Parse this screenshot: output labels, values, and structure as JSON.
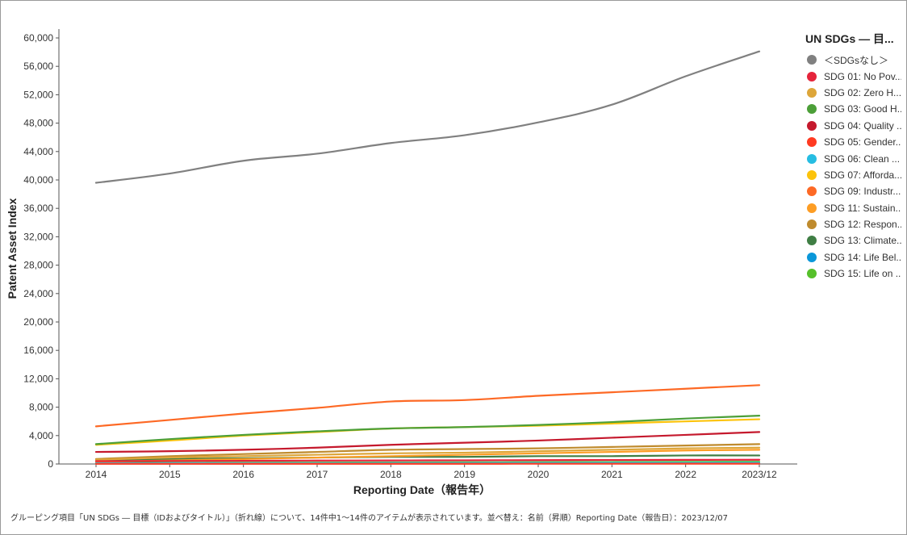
{
  "chart_data": {
    "type": "line",
    "xlabel": "Reporting Date（報告年）",
    "ylabel": "Patent Asset Index",
    "x": [
      "2014",
      "2015",
      "2016",
      "2017",
      "2018",
      "2019",
      "2020",
      "2021",
      "2022",
      "2023/12"
    ],
    "ylim": [
      0,
      60000
    ],
    "yticks": [
      0,
      4000,
      8000,
      12000,
      16000,
      20000,
      24000,
      28000,
      32000,
      36000,
      40000,
      44000,
      48000,
      52000,
      56000,
      60000
    ],
    "ytick_labels": [
      "0",
      "4,000",
      "8,000",
      "12,000",
      "16,000",
      "20,000",
      "24,000",
      "28,000",
      "32,000",
      "36,000",
      "40,000",
      "44,000",
      "48,000",
      "52,000",
      "56,000",
      "60,000"
    ],
    "grid": false,
    "legend_position": "right",
    "legend_title": "UN SDGs ― 目...",
    "series": [
      {
        "name": "＜SDGsなし＞",
        "color": "#808080",
        "values": [
          39600,
          40900,
          42700,
          43700,
          45200,
          46300,
          48100,
          50600,
          54600,
          58100
        ]
      },
      {
        "name": "SDG 01: No Pov...",
        "color": "#e5243b",
        "values": [
          400,
          420,
          450,
          480,
          500,
          520,
          540,
          560,
          580,
          600
        ]
      },
      {
        "name": "SDG 02: Zero H...",
        "color": "#dda63a",
        "values": [
          600,
          900,
          1100,
          1300,
          1500,
          1600,
          1800,
          2000,
          2200,
          2300
        ]
      },
      {
        "name": "SDG 03: Good H...",
        "color": "#4c9f38",
        "values": [
          2800,
          3500,
          4100,
          4600,
          5000,
          5200,
          5500,
          5900,
          6400,
          6800
        ]
      },
      {
        "name": "SDG 04: Quality ...",
        "color": "#c5192d",
        "values": [
          1700,
          1800,
          2000,
          2300,
          2700,
          3000,
          3300,
          3700,
          4100,
          4500
        ]
      },
      {
        "name": "SDG 05: Gender...",
        "color": "#ff3a21",
        "values": [
          20,
          20,
          25,
          25,
          30,
          30,
          35,
          35,
          40,
          40
        ]
      },
      {
        "name": "SDG 06: Clean ...",
        "color": "#26bde2",
        "values": [
          100,
          110,
          120,
          130,
          140,
          150,
          160,
          170,
          180,
          190
        ]
      },
      {
        "name": "SDG 07: Afforda...",
        "color": "#fcc30b",
        "values": [
          2700,
          3300,
          4000,
          4500,
          5000,
          5200,
          5400,
          5700,
          6000,
          6300
        ]
      },
      {
        "name": "SDG 09: Industr...",
        "color": "#fd6925",
        "values": [
          5300,
          6200,
          7100,
          7900,
          8800,
          9000,
          9600,
          10100,
          10600,
          11100
        ]
      },
      {
        "name": "SDG 11: Sustain...",
        "color": "#fd9d24",
        "values": [
          300,
          500,
          700,
          900,
          1100,
          1300,
          1500,
          1700,
          1900,
          2000
        ]
      },
      {
        "name": "SDG 12: Respon...",
        "color": "#bf8b2e",
        "values": [
          700,
          1100,
          1400,
          1700,
          2000,
          2100,
          2200,
          2400,
          2600,
          2800
        ]
      },
      {
        "name": "SDG 13: Climate...",
        "color": "#3f7e44",
        "values": [
          600,
          700,
          800,
          900,
          1000,
          1000,
          1100,
          1100,
          1200,
          1200
        ]
      },
      {
        "name": "SDG 14: Life Bel...",
        "color": "#0a97d9",
        "values": [
          50,
          55,
          60,
          65,
          70,
          75,
          80,
          85,
          90,
          95
        ]
      },
      {
        "name": "SDG 15: Life on ...",
        "color": "#56c02b",
        "values": [
          150,
          170,
          190,
          200,
          220,
          240,
          260,
          280,
          300,
          320
        ]
      }
    ]
  },
  "footer_text": "グルーピング項目「UN SDGs ― 目標（IDおよびタイトル）」（折れ線）について、14件中1〜14件のアイテムが表示されています。並べ替え：名前（昇順）Reporting Date（報告日）：2023/12/07"
}
